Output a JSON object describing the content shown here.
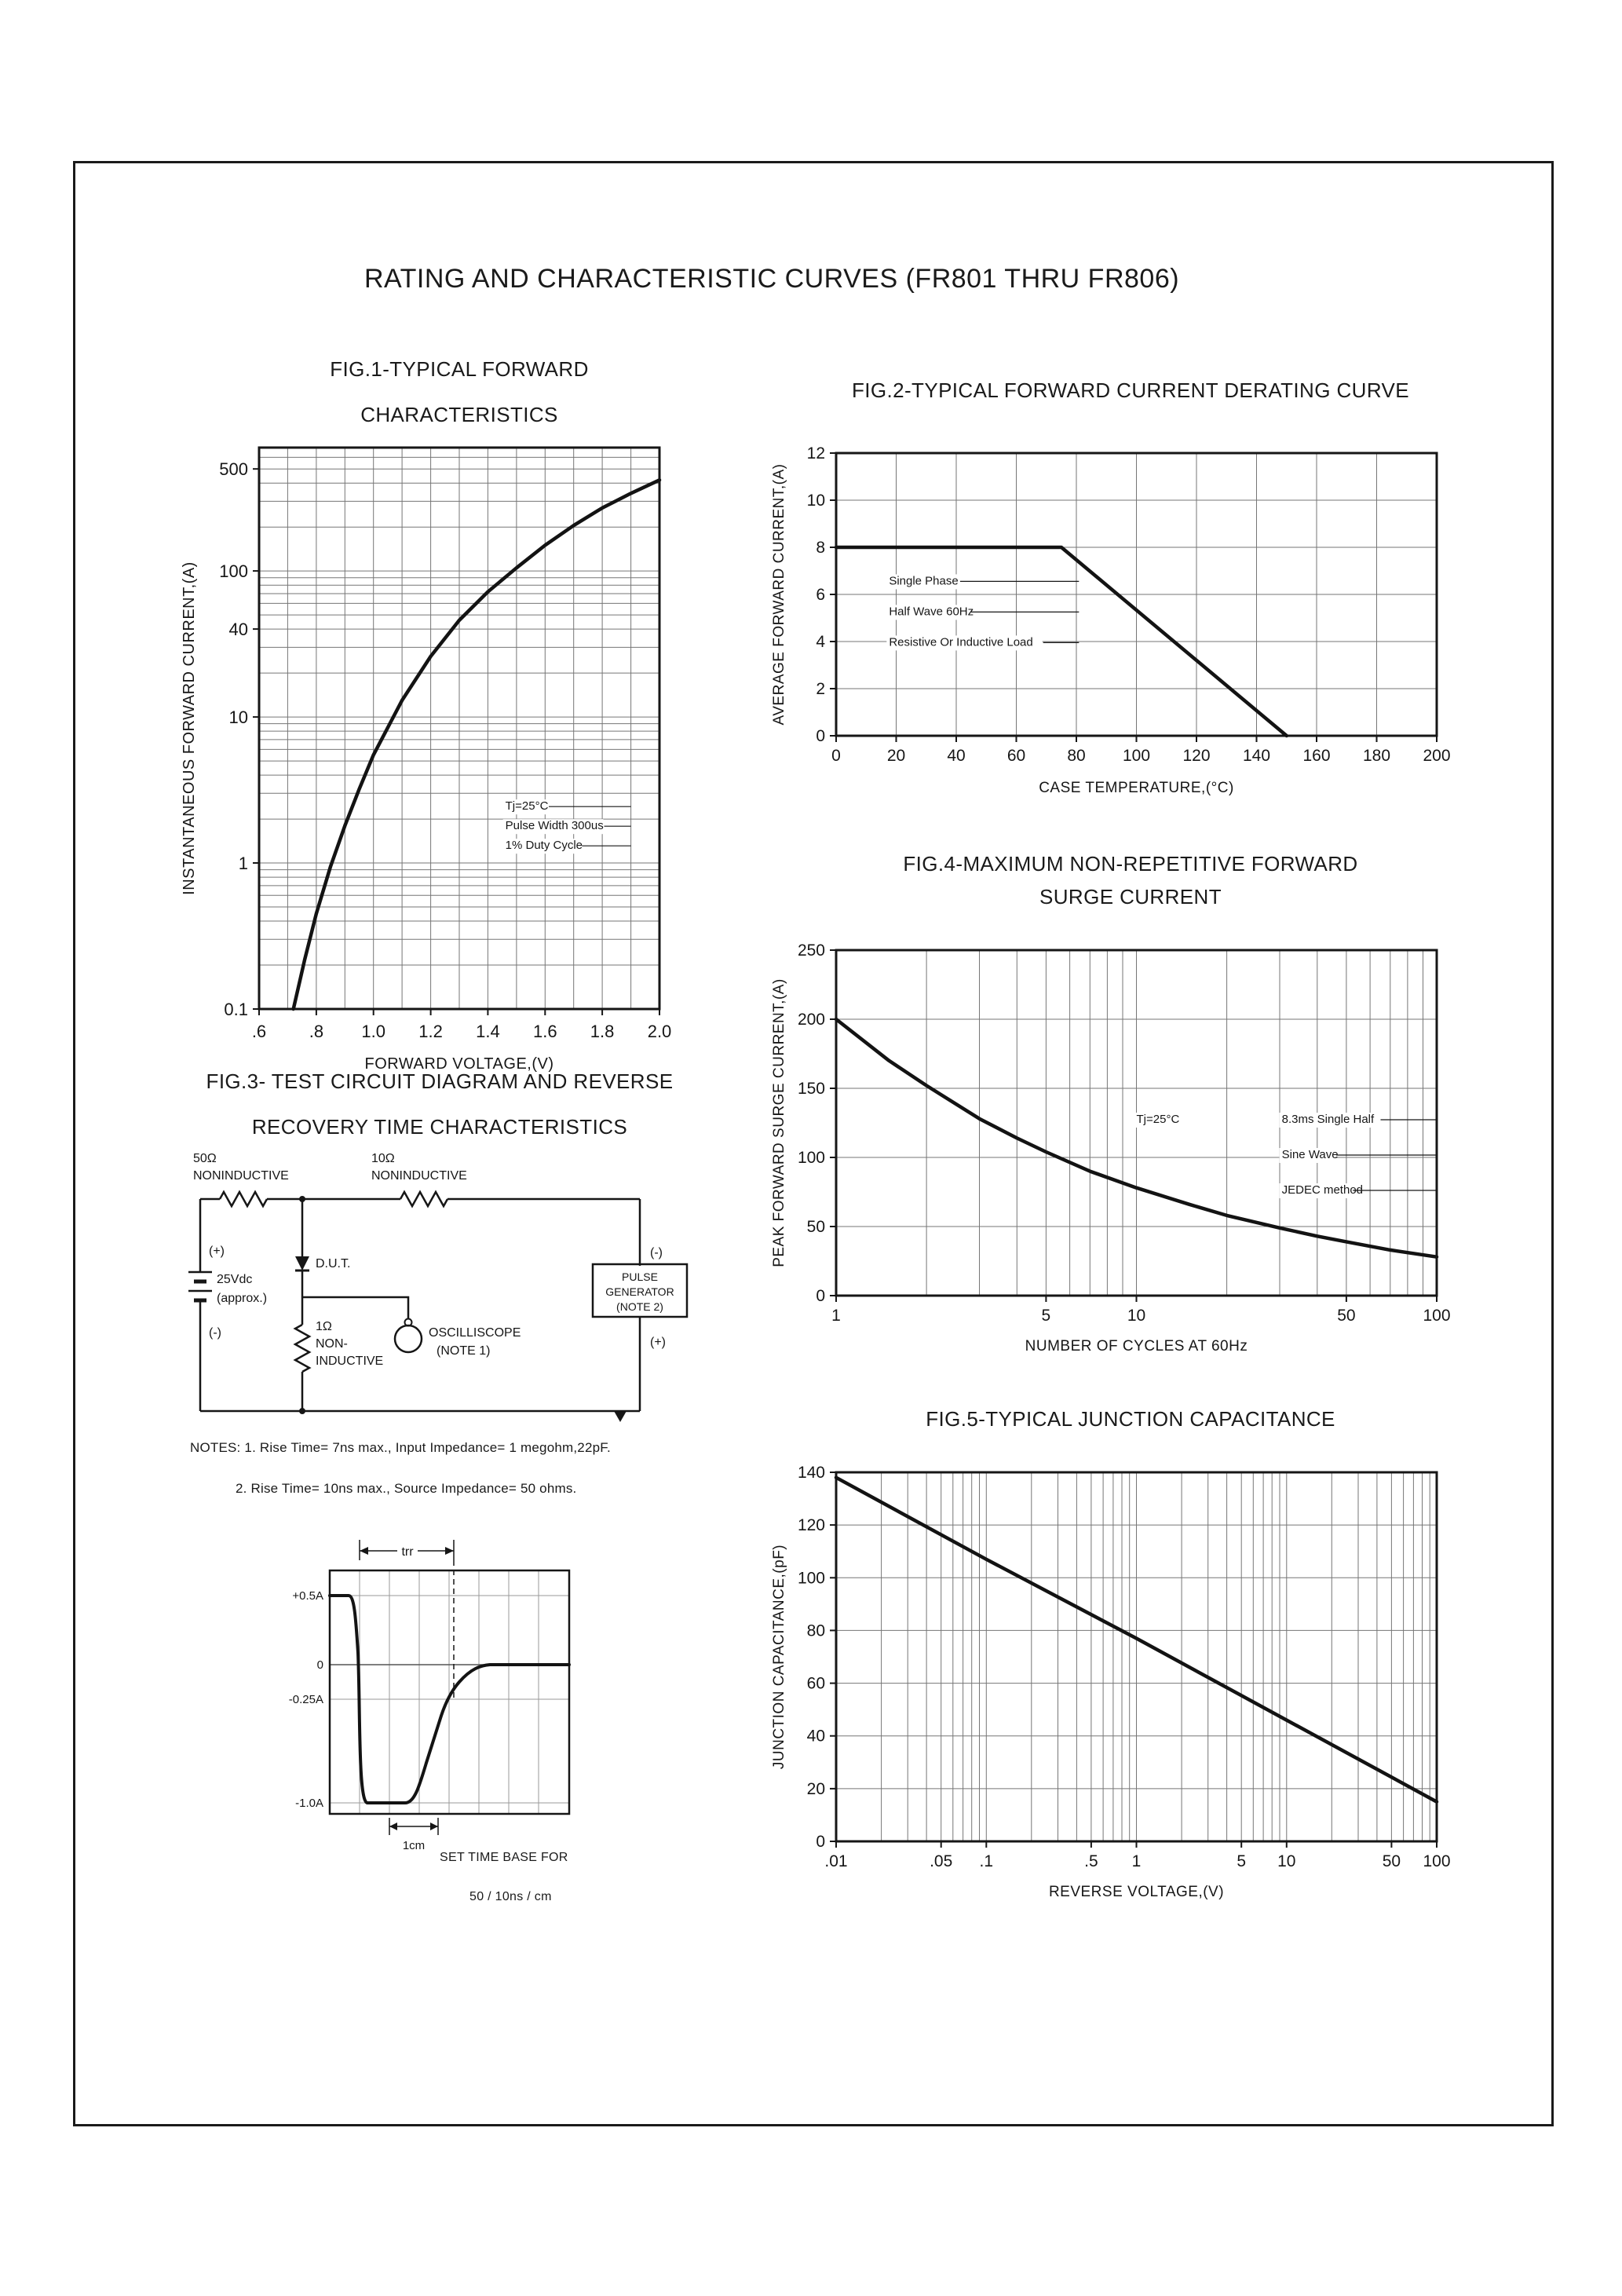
{
  "page": {
    "title": "RATING AND CHARACTERISTIC CURVES (FR801 THRU FR806)"
  },
  "fig1": {
    "caption_line1": "FIG.1-TYPICAL FORWARD",
    "caption_line2": "CHARACTERISTICS"
  },
  "fig2": {
    "caption": "FIG.2-TYPICAL FORWARD CURRENT DERATING CURVE"
  },
  "fig3": {
    "caption_line1": "FIG.3- TEST CIRCUIT DIAGRAM AND REVERSE",
    "caption_line2": "RECOVERY TIME CHARACTERISTICS",
    "circuit": {
      "r1_value": "50Ω",
      "r1_type": "NONINDUCTIVE",
      "r2_value": "10Ω",
      "r2_type": "NONINDUCTIVE",
      "battery_plus": "(+)",
      "battery_value": "25Vdc",
      "battery_note": "(approx.)",
      "battery_minus": "(-)",
      "dut_label": "D.U.T.",
      "r3_value": "1Ω",
      "r3_line2": "NON-",
      "r3_line3": "INDUCTIVE",
      "scope_line1": "OSCILLISCOPE",
      "scope_line2": "(NOTE 1)",
      "pulse_line1": "PULSE",
      "pulse_line2": "GENERATOR",
      "pulse_line3": "(NOTE 2)",
      "pulse_minus": "(-)",
      "pulse_plus": "(+)"
    },
    "note_line1": "NOTES: 1. Rise Time= 7ns max., Input Impedance= 1 megohm,22pF.",
    "note_line2": "2. Rise Time= 10ns max., Source Impedance= 50 ohms.",
    "waveform": {
      "trr_label": "trr",
      "level_labels": [
        "+0.5A",
        "0",
        "-0.25A",
        "-1.0A"
      ],
      "cm_label": "1cm",
      "timebase_line1": "SET TIME BASE FOR",
      "timebase_line2": "50 / 10ns / cm"
    }
  },
  "fig4": {
    "caption_line1": "FIG.4-MAXIMUM NON-REPETITIVE FORWARD",
    "caption_line2": "SURGE CURRENT"
  },
  "fig5": {
    "caption": "FIG.5-TYPICAL JUNCTION CAPACITANCE"
  },
  "chart_data": [
    {
      "id": "fig1",
      "type": "line",
      "title": "FIG.1-TYPICAL FORWARD CHARACTERISTICS",
      "xlabel": "FORWARD VOLTAGE,(V)",
      "ylabel": "INSTANTANEOUS FORWARD CURRENT,(A)",
      "xscale": "linear",
      "yscale": "log",
      "xlim": [
        0.6,
        2.0
      ],
      "ylim": [
        0.1,
        700
      ],
      "xgrid_step": 0.1,
      "grid": true,
      "legend": false,
      "xticks": [
        {
          "v": 0.6,
          "label": ".6"
        },
        {
          "v": 0.8,
          "label": ".8"
        },
        {
          "v": 1.0,
          "label": "1.0"
        },
        {
          "v": 1.2,
          "label": "1.2"
        },
        {
          "v": 1.4,
          "label": "1.4"
        },
        {
          "v": 1.6,
          "label": "1.6"
        },
        {
          "v": 1.8,
          "label": "1.8"
        },
        {
          "v": 2.0,
          "label": "2.0"
        }
      ],
      "yticks": [
        {
          "v": 500,
          "label": "500"
        },
        {
          "v": 100,
          "label": "100"
        },
        {
          "v": 40,
          "label": "40"
        },
        {
          "v": 10,
          "label": "10"
        },
        {
          "v": 1,
          "label": "1"
        },
        {
          "v": 0.1,
          "label": "0.1"
        }
      ],
      "series": [
        {
          "name": "instantaneous forward current vs forward voltage",
          "points": [
            [
              0.72,
              0.1
            ],
            [
              0.76,
              0.22
            ],
            [
              0.8,
              0.45
            ],
            [
              0.85,
              0.95
            ],
            [
              0.9,
              1.8
            ],
            [
              0.95,
              3.2
            ],
            [
              1.0,
              5.5
            ],
            [
              1.1,
              13
            ],
            [
              1.2,
              26
            ],
            [
              1.3,
              46
            ],
            [
              1.4,
              72
            ],
            [
              1.5,
              105
            ],
            [
              1.6,
              150
            ],
            [
              1.7,
              205
            ],
            [
              1.8,
              270
            ],
            [
              1.9,
              340
            ],
            [
              2.0,
              420
            ]
          ]
        }
      ],
      "annotations": [
        {
          "fx": 0.615,
          "fy": 0.645,
          "line_h": 25,
          "font": 15,
          "rule_w": 160,
          "lines": [
            "Tj=25°C",
            "Pulse Width 300us",
            "1% Duty Cycle"
          ]
        }
      ]
    },
    {
      "id": "fig2",
      "type": "line",
      "title": "FIG.2-TYPICAL FORWARD CURRENT DERATING CURVE",
      "xlabel": "CASE TEMPERATURE,(°C)",
      "ylabel": "AVERAGE FORWARD CURRENT,(A)",
      "xscale": "linear",
      "yscale": "linear",
      "xlim": [
        0,
        200
      ],
      "ylim": [
        0,
        12
      ],
      "xgrid_step": 20,
      "ygrid_step": 2,
      "grid": true,
      "legend": false,
      "xticks": [
        {
          "v": 0,
          "label": "0"
        },
        {
          "v": 20,
          "label": "20"
        },
        {
          "v": 40,
          "label": "40"
        },
        {
          "v": 60,
          "label": "60"
        },
        {
          "v": 80,
          "label": "80"
        },
        {
          "v": 100,
          "label": "100"
        },
        {
          "v": 120,
          "label": "120"
        },
        {
          "v": 140,
          "label": "140"
        },
        {
          "v": 160,
          "label": "160"
        },
        {
          "v": 180,
          "label": "180"
        },
        {
          "v": 200,
          "label": "200"
        }
      ],
      "yticks": [
        {
          "v": 0,
          "label": "0"
        },
        {
          "v": 2,
          "label": "2"
        },
        {
          "v": 4,
          "label": "4"
        },
        {
          "v": 6,
          "label": "6"
        },
        {
          "v": 8,
          "label": "8"
        },
        {
          "v": 10,
          "label": "10"
        },
        {
          "v": 12,
          "label": "12"
        }
      ],
      "series": [
        {
          "name": "average forward current derating",
          "points": [
            [
              0,
              8
            ],
            [
              75,
              8
            ],
            [
              150,
              0
            ]
          ]
        }
      ],
      "annotations": [
        {
          "fx": 0.088,
          "fy": 0.465,
          "line_h": 39,
          "font": 15,
          "rule_w": 242,
          "lines": [
            "Single Phase",
            "Half Wave 60Hz",
            "Resistive Or Inductive Load"
          ]
        }
      ]
    },
    {
      "id": "fig4",
      "type": "line",
      "title": "FIG.4-MAXIMUM NON-REPETITIVE FORWARD SURGE CURRENT",
      "xlabel": "NUMBER OF CYCLES AT 60Hz",
      "ylabel": "PEAK FORWARD SURGE CURRENT,(A)",
      "xscale": "log",
      "yscale": "linear",
      "xlim": [
        1,
        100
      ],
      "ylim": [
        0,
        250
      ],
      "ygrid_step": 50,
      "grid": true,
      "legend": false,
      "xticks": [
        {
          "v": 1,
          "label": "1"
        },
        {
          "v": 5,
          "label": "5"
        },
        {
          "v": 10,
          "label": "10"
        },
        {
          "v": 50,
          "label": "50"
        },
        {
          "v": 100,
          "label": "100"
        }
      ],
      "yticks": [
        {
          "v": 0,
          "label": "0"
        },
        {
          "v": 50,
          "label": "50"
        },
        {
          "v": 100,
          "label": "100"
        },
        {
          "v": 150,
          "label": "150"
        },
        {
          "v": 200,
          "label": "200"
        },
        {
          "v": 250,
          "label": "250"
        }
      ],
      "series": [
        {
          "name": "peak forward surge current vs cycles",
          "points": [
            [
              1,
              200
            ],
            [
              1.5,
              170
            ],
            [
              2,
              152
            ],
            [
              3,
              128
            ],
            [
              4,
              114
            ],
            [
              5,
              104
            ],
            [
              7,
              90
            ],
            [
              10,
              78
            ],
            [
              15,
              66
            ],
            [
              20,
              58
            ],
            [
              30,
              49
            ],
            [
              40,
              43
            ],
            [
              50,
              39
            ],
            [
              70,
              33
            ],
            [
              100,
              28
            ]
          ]
        }
      ],
      "annotations": [
        {
          "fx": 0.5,
          "fy": 0.5,
          "font": 15,
          "lines": [
            "Tj=25°C"
          ]
        },
        {
          "fx": 0.742,
          "fy": 0.5,
          "line_h": 45,
          "font": 15,
          "rule_w": 198,
          "lines": [
            "8.3ms Single Half",
            "Sine Wave",
            "JEDEC method"
          ]
        }
      ]
    },
    {
      "id": "fig5",
      "type": "line",
      "title": "FIG.5-TYPICAL JUNCTION CAPACITANCE",
      "xlabel": "REVERSE VOLTAGE,(V)",
      "ylabel": "JUNCTION CAPACITANCE,(pF)",
      "xscale": "log",
      "yscale": "linear",
      "xlim": [
        0.01,
        100
      ],
      "ylim": [
        0,
        140
      ],
      "ygrid_step": 20,
      "grid": true,
      "legend": false,
      "xticks": [
        {
          "v": 0.01,
          "label": ".01"
        },
        {
          "v": 0.05,
          "label": ".05"
        },
        {
          "v": 0.1,
          "label": ".1"
        },
        {
          "v": 0.5,
          "label": ".5"
        },
        {
          "v": 1,
          "label": "1"
        },
        {
          "v": 5,
          "label": "5"
        },
        {
          "v": 10,
          "label": "10"
        },
        {
          "v": 50,
          "label": "50"
        },
        {
          "v": 100,
          "label": "100"
        }
      ],
      "yticks": [
        {
          "v": 0,
          "label": "0"
        },
        {
          "v": 20,
          "label": "20"
        },
        {
          "v": 40,
          "label": "40"
        },
        {
          "v": 60,
          "label": "60"
        },
        {
          "v": 80,
          "label": "80"
        },
        {
          "v": 100,
          "label": "100"
        },
        {
          "v": 120,
          "label": "120"
        },
        {
          "v": 140,
          "label": "140"
        }
      ],
      "series": [
        {
          "name": "junction capacitance vs reverse voltage",
          "points": [
            [
              0.01,
              138
            ],
            [
              0.1,
              107
            ],
            [
              1,
              77
            ],
            [
              10,
              46
            ],
            [
              100,
              15
            ]
          ]
        }
      ]
    }
  ]
}
